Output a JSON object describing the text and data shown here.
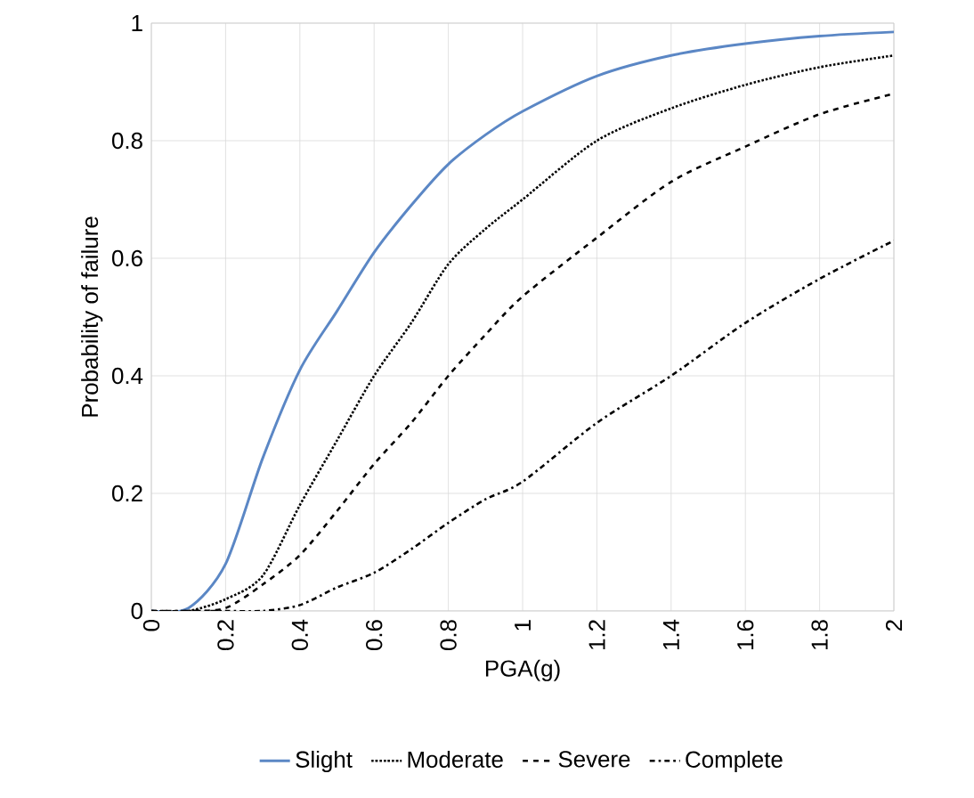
{
  "chart_data": {
    "type": "line",
    "xlabel": "PGA(g)",
    "ylabel": "Probability of failure",
    "x": [
      0,
      0.1,
      0.2,
      0.3,
      0.4,
      0.5,
      0.6,
      0.7,
      0.8,
      0.9,
      1.0,
      1.2,
      1.4,
      1.6,
      1.8,
      2.0
    ],
    "series": [
      {
        "name": "Slight",
        "color": "#5b87c5",
        "line_style": "solid",
        "values": [
          0,
          0.005,
          0.08,
          0.26,
          0.41,
          0.51,
          0.61,
          0.69,
          0.76,
          0.81,
          0.85,
          0.91,
          0.945,
          0.965,
          0.978,
          0.985
        ]
      },
      {
        "name": "Moderate",
        "color": "#000000",
        "line_style": "dotted",
        "values": [
          0,
          0,
          0.02,
          0.06,
          0.18,
          0.29,
          0.4,
          0.49,
          0.59,
          0.65,
          0.7,
          0.8,
          0.855,
          0.895,
          0.925,
          0.945
        ]
      },
      {
        "name": "Severe",
        "color": "#000000",
        "line_style": "dashed",
        "values": [
          0,
          0,
          0.005,
          0.045,
          0.095,
          0.17,
          0.25,
          0.32,
          0.4,
          0.47,
          0.535,
          0.635,
          0.73,
          0.79,
          0.845,
          0.88
        ]
      },
      {
        "name": "Complete",
        "color": "#000000",
        "line_style": "dashdot",
        "values": [
          0,
          0,
          0,
          0,
          0.01,
          0.04,
          0.065,
          0.105,
          0.15,
          0.19,
          0.22,
          0.32,
          0.4,
          0.49,
          0.565,
          0.63
        ]
      }
    ],
    "xlim": [
      0,
      2
    ],
    "ylim": [
      0,
      1
    ],
    "xticks": [
      0,
      0.2,
      0.4,
      0.6,
      0.8,
      1,
      1.2,
      1.4,
      1.6,
      1.8,
      2
    ],
    "yticks": [
      0,
      0.2,
      0.4,
      0.6,
      0.8,
      1
    ],
    "grid": true,
    "legend": "bottom",
    "marker": "none"
  }
}
